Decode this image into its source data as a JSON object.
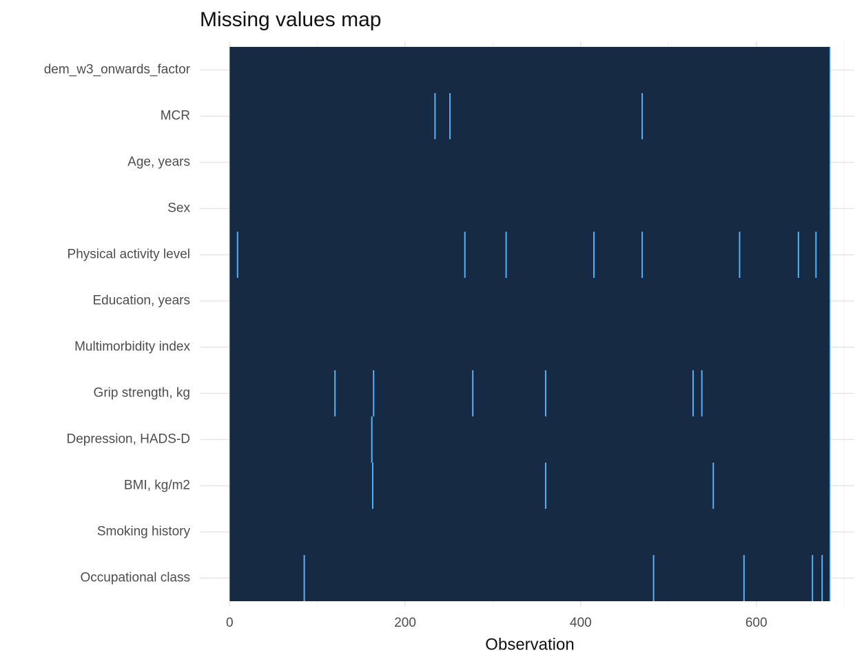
{
  "chart_data": {
    "type": "missing-map",
    "title": "Missing values map",
    "x_label": "Observation",
    "categories": [
      "dem_w3_onwards_factor",
      "MCR",
      "Age, years",
      "Sex",
      "Physical activity level",
      "Education, years",
      "Multimorbidity index",
      "Grip strength, kg",
      "Depression, HADS-D",
      "BMI, kg/m2",
      "Smoking history",
      "Occupational class"
    ],
    "missing": [
      [],
      [
        234,
        251,
        470
      ],
      [],
      [],
      [
        9,
        268,
        315,
        415,
        470,
        581,
        648,
        668
      ],
      [],
      [],
      [
        120,
        164,
        277,
        360,
        528,
        538
      ],
      [
        162
      ],
      [
        163,
        360,
        551
      ],
      [],
      [
        85,
        483,
        586,
        664,
        675
      ]
    ],
    "observed_range": [
      0,
      684
    ],
    "xlim": [
      -34,
      718
    ],
    "xticks": [
      0,
      200,
      400,
      600
    ],
    "xminorticks": [
      100,
      300,
      500,
      700
    ],
    "grid": true,
    "present_color": "#162b43",
    "missing_color": "#56b1f7"
  }
}
